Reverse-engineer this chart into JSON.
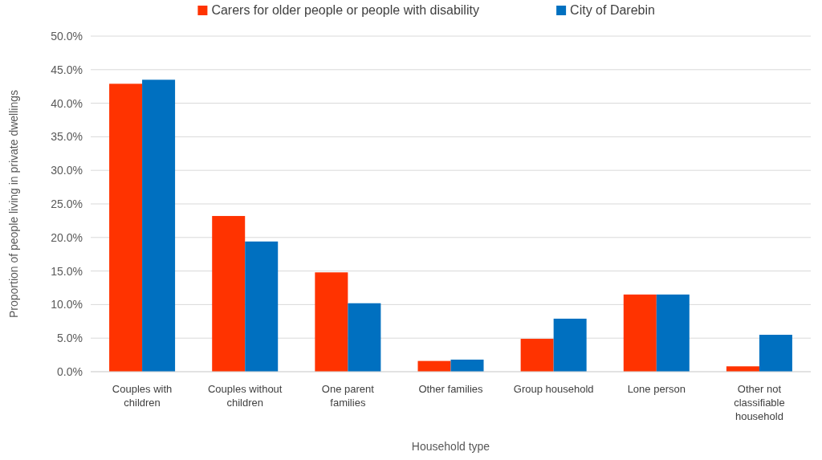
{
  "chart_data": {
    "type": "bar",
    "xlabel": "Household type",
    "ylabel": "Proportion of people living in private dwellings",
    "categories": [
      "Couples with children",
      "Couples without children",
      "One parent families",
      "Other families",
      "Group household",
      "Lone person",
      "Other not classifiable household"
    ],
    "series": [
      {
        "name": "Carers for older people or people with disability",
        "color": "#ff3300",
        "values": [
          42.9,
          23.2,
          14.8,
          1.6,
          4.9,
          11.5,
          0.8
        ]
      },
      {
        "name": "City of Darebin",
        "color": "#0070c0",
        "values": [
          43.5,
          19.4,
          10.2,
          1.8,
          7.9,
          11.5,
          5.5
        ]
      }
    ],
    "ylim": [
      0,
      50
    ],
    "yticks": [
      {
        "value": 0,
        "label": "0.0%"
      },
      {
        "value": 5,
        "label": "5.0%"
      },
      {
        "value": 10,
        "label": "10.0%"
      },
      {
        "value": 15,
        "label": "15.0%"
      },
      {
        "value": 20,
        "label": "20.0%"
      },
      {
        "value": 25,
        "label": "25.0%"
      },
      {
        "value": 30,
        "label": "30.0%"
      },
      {
        "value": 35,
        "label": "35.0%"
      },
      {
        "value": 40,
        "label": "40.0%"
      },
      {
        "value": 45,
        "label": "45.0%"
      },
      {
        "value": 50,
        "label": "50.0%"
      }
    ],
    "grid": "y",
    "legend": "top"
  }
}
